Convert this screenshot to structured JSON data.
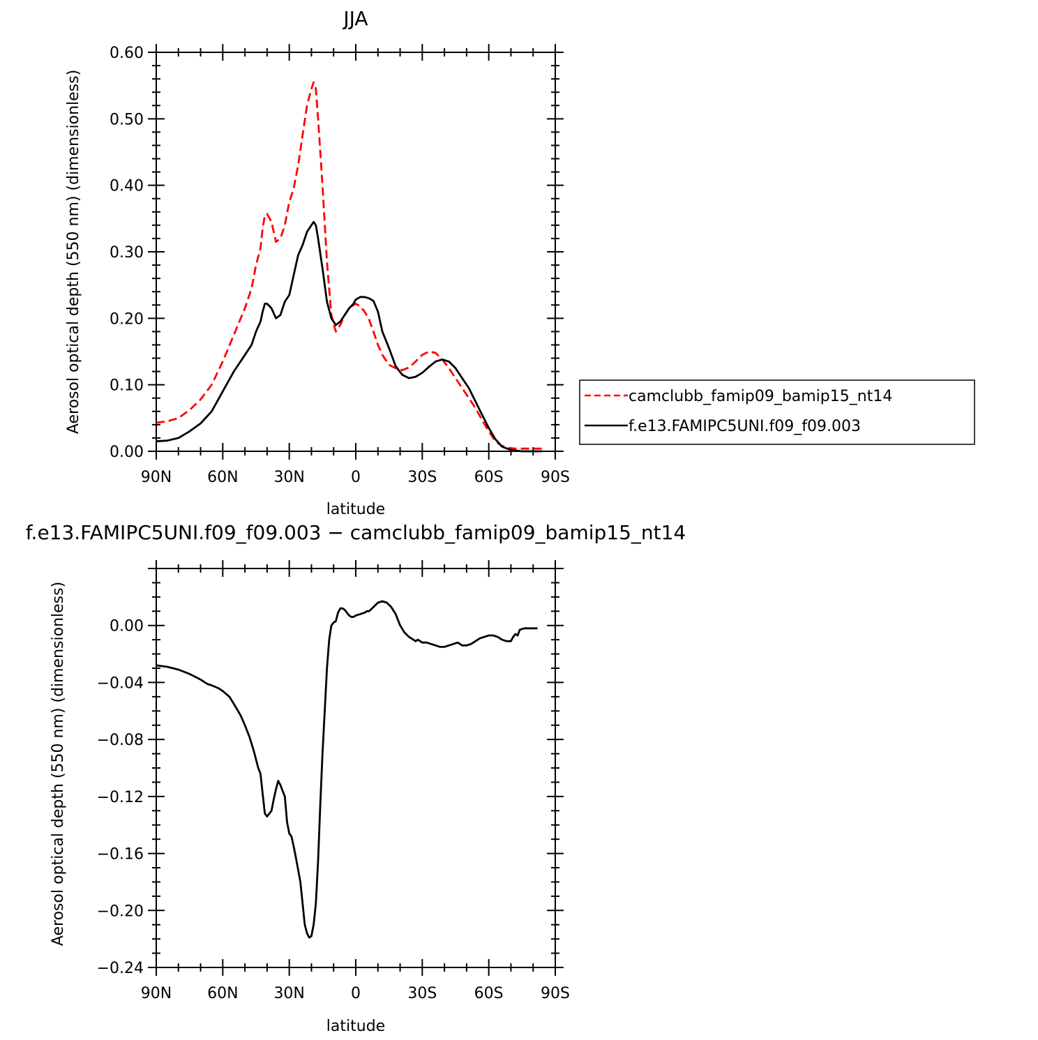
{
  "chart_data": [
    {
      "type": "line",
      "title": "JJA",
      "xlabel": "latitude",
      "ylabel": "Aerosol optical depth (550 nm) (dimensionless)",
      "xlim": [
        90,
        -90
      ],
      "ylim": [
        0.0,
        0.6
      ],
      "xticks": [
        90,
        60,
        30,
        0,
        -30,
        -60,
        -90
      ],
      "xtick_labels": [
        "90N",
        "60N",
        "30N",
        "0",
        "30S",
        "60S",
        "90S"
      ],
      "yticks": [
        0.0,
        0.1,
        0.2,
        0.3,
        0.4,
        0.5,
        0.6
      ],
      "ytick_labels": [
        "0.00",
        "0.10",
        "0.20",
        "0.30",
        "0.40",
        "0.50",
        "0.60"
      ],
      "legend_position": "right",
      "series": [
        {
          "name": "camclubb_famip09_bamip15_nt14",
          "color": "#ff0000",
          "dash": "dashed",
          "x": [
            90,
            85,
            80,
            75,
            70,
            65,
            60,
            55,
            50,
            47,
            45,
            43,
            42,
            41,
            40,
            38,
            36,
            34,
            32,
            30,
            28,
            26,
            24,
            22,
            20,
            19,
            18,
            17,
            15,
            13,
            11,
            9,
            7,
            5,
            3,
            1,
            0,
            -2,
            -4,
            -6,
            -8,
            -10,
            -12,
            -15,
            -18,
            -21,
            -24,
            -27,
            -30,
            -33,
            -36,
            -39,
            -42,
            -45,
            -48,
            -51,
            -54,
            -57,
            -60,
            -63,
            -66,
            -69,
            -72,
            -75,
            -78,
            -81,
            -84
          ],
          "y": [
            0.043,
            0.045,
            0.05,
            0.062,
            0.078,
            0.1,
            0.135,
            0.175,
            0.215,
            0.245,
            0.28,
            0.305,
            0.335,
            0.355,
            0.357,
            0.345,
            0.315,
            0.32,
            0.34,
            0.375,
            0.395,
            0.43,
            0.475,
            0.52,
            0.545,
            0.555,
            0.545,
            0.5,
            0.4,
            0.285,
            0.205,
            0.18,
            0.19,
            0.205,
            0.215,
            0.22,
            0.222,
            0.218,
            0.21,
            0.198,
            0.18,
            0.16,
            0.145,
            0.13,
            0.125,
            0.122,
            0.126,
            0.135,
            0.145,
            0.15,
            0.148,
            0.138,
            0.125,
            0.11,
            0.095,
            0.08,
            0.065,
            0.047,
            0.03,
            0.015,
            0.008,
            0.005,
            0.004,
            0.004,
            0.004,
            0.004,
            0.004
          ]
        },
        {
          "name": "f.e13.FAMIPC5UNI.f09_f09.003",
          "color": "#000000",
          "dash": "solid",
          "x": [
            90,
            85,
            80,
            75,
            70,
            65,
            60,
            55,
            50,
            47,
            45,
            43,
            42,
            41,
            40,
            38,
            36,
            34,
            32,
            30,
            28,
            26,
            24,
            22,
            20,
            19,
            18,
            17,
            15,
            13,
            11,
            9,
            7,
            5,
            3,
            1,
            0,
            -2,
            -4,
            -6,
            -8,
            -10,
            -12,
            -15,
            -18,
            -21,
            -24,
            -27,
            -30,
            -33,
            -36,
            -39,
            -42,
            -45,
            -48,
            -51,
            -54,
            -57,
            -60,
            -63,
            -66,
            -69,
            -72,
            -75,
            -78,
            -81,
            -84
          ],
          "y": [
            0.015,
            0.016,
            0.02,
            0.03,
            0.042,
            0.06,
            0.09,
            0.12,
            0.145,
            0.16,
            0.18,
            0.195,
            0.21,
            0.222,
            0.222,
            0.215,
            0.2,
            0.205,
            0.225,
            0.235,
            0.265,
            0.295,
            0.31,
            0.33,
            0.34,
            0.345,
            0.34,
            0.32,
            0.275,
            0.225,
            0.2,
            0.19,
            0.195,
            0.205,
            0.215,
            0.222,
            0.228,
            0.232,
            0.232,
            0.23,
            0.226,
            0.21,
            0.18,
            0.155,
            0.128,
            0.115,
            0.11,
            0.112,
            0.118,
            0.127,
            0.135,
            0.138,
            0.135,
            0.125,
            0.11,
            0.095,
            0.075,
            0.055,
            0.035,
            0.018,
            0.007,
            0.003,
            0.001,
            0.0,
            0.0,
            0.0,
            0.0
          ]
        }
      ]
    },
    {
      "type": "line",
      "title": "f.e13.FAMIPC5UNI.f09_f09.003 − camclubb_famip09_bamip15_nt14",
      "xlabel": "latitude",
      "ylabel": "Aerosol optical depth (550 nm) (dimensionless)",
      "xlim": [
        90,
        -90
      ],
      "ylim": [
        -0.24,
        0.04
      ],
      "xticks": [
        90,
        60,
        30,
        0,
        -30,
        -60,
        -90
      ],
      "xtick_labels": [
        "90N",
        "60N",
        "30N",
        "0",
        "30S",
        "60S",
        "90S"
      ],
      "yticks": [
        0.0,
        -0.04,
        -0.08,
        -0.12,
        -0.16,
        -0.2,
        -0.24
      ],
      "ytick_labels": [
        "0.00",
        "−0.04",
        "−0.08",
        "−0.12",
        "−0.16",
        "−0.20",
        "−0.24"
      ],
      "series": [
        {
          "name": "",
          "color": "#000000",
          "dash": "solid",
          "x": [
            90,
            85,
            80,
            75,
            70,
            67,
            65,
            62,
            60,
            57,
            55,
            52,
            50,
            48,
            46,
            44,
            43,
            42,
            41,
            40,
            39,
            38,
            37,
            36,
            35,
            34,
            33,
            32,
            31,
            30,
            29,
            28,
            27,
            25,
            23,
            22,
            21,
            20,
            19,
            18,
            17,
            16,
            15,
            14,
            13,
            12,
            11,
            10,
            9,
            8,
            7,
            6,
            5,
            4,
            3,
            2,
            1,
            0,
            -2,
            -4,
            -5,
            -6,
            -8,
            -10,
            -12,
            -14,
            -16,
            -18,
            -20,
            -22,
            -24,
            -26,
            -27,
            -28,
            -30,
            -32,
            -34,
            -36,
            -38,
            -40,
            -42,
            -44,
            -46,
            -48,
            -50,
            -52,
            -54,
            -56,
            -58,
            -60,
            -62,
            -64,
            -66,
            -68,
            -70,
            -71,
            -72,
            -73,
            -74,
            -76,
            -78,
            -80,
            -82
          ],
          "y": [
            -0.028,
            -0.029,
            -0.031,
            -0.034,
            -0.038,
            -0.041,
            -0.042,
            -0.044,
            -0.046,
            -0.05,
            -0.055,
            -0.063,
            -0.07,
            -0.078,
            -0.088,
            -0.1,
            -0.104,
            -0.118,
            -0.132,
            -0.134,
            -0.132,
            -0.13,
            -0.122,
            -0.115,
            -0.109,
            -0.112,
            -0.116,
            -0.12,
            -0.138,
            -0.146,
            -0.148,
            -0.155,
            -0.163,
            -0.18,
            -0.21,
            -0.216,
            -0.219,
            -0.218,
            -0.21,
            -0.195,
            -0.165,
            -0.125,
            -0.09,
            -0.06,
            -0.03,
            -0.01,
            0.0,
            0.002,
            0.003,
            0.009,
            0.012,
            0.012,
            0.011,
            0.009,
            0.007,
            0.006,
            0.006,
            0.007,
            0.008,
            0.009,
            0.01,
            0.01,
            0.013,
            0.016,
            0.017,
            0.016,
            0.013,
            0.008,
            0.0,
            -0.005,
            -0.008,
            -0.01,
            -0.011,
            -0.01,
            -0.012,
            -0.012,
            -0.013,
            -0.014,
            -0.015,
            -0.015,
            -0.014,
            -0.013,
            -0.012,
            -0.014,
            -0.014,
            -0.013,
            -0.011,
            -0.009,
            -0.008,
            -0.007,
            -0.007,
            -0.008,
            -0.01,
            -0.011,
            -0.011,
            -0.008,
            -0.006,
            -0.007,
            -0.003,
            -0.002,
            -0.002,
            -0.002,
            -0.002
          ]
        }
      ]
    }
  ]
}
